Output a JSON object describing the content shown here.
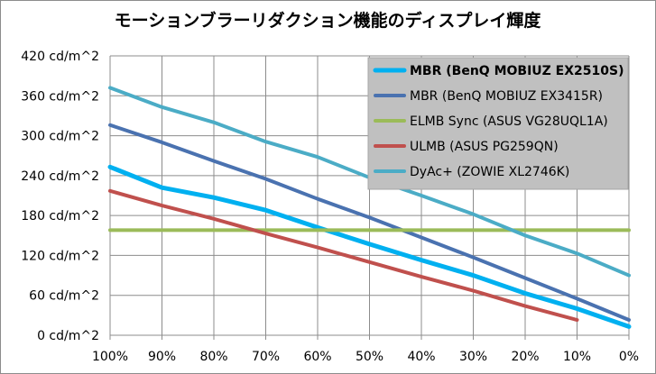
{
  "chart_data": {
    "type": "line",
    "title": "モーションブラーリダクション機能のディスプレイ輝度",
    "categories": [
      "100%",
      "90%",
      "80%",
      "70%",
      "60%",
      "50%",
      "40%",
      "30%",
      "20%",
      "10%",
      "0%"
    ],
    "y_tick_labels": [
      "0 cd/m^2",
      "60 cd/m^2",
      "120 cd/m^2",
      "180 cd/m^2",
      "240 cd/m^2",
      "300 cd/m^2",
      "360 cd/m^2",
      "420 cd/m^2"
    ],
    "ylim": [
      0,
      420
    ],
    "yticks": [
      0,
      60,
      120,
      180,
      240,
      300,
      360,
      420
    ],
    "grid": true,
    "legend_position": "top-right",
    "series": [
      {
        "name": "MBR (BenQ MOBIUZ EX2510S)",
        "color": "#00b0f0",
        "bold": true,
        "values": [
          253,
          222,
          207,
          188,
          162,
          137,
          113,
          90,
          63,
          40,
          13
        ]
      },
      {
        "name": "MBR (BenQ MOBIUZ EX3415R)",
        "color": "#4a72b0",
        "bold": false,
        "values": [
          316,
          290,
          262,
          235,
          205,
          177,
          147,
          117,
          86,
          55,
          23
        ]
      },
      {
        "name": "ELMB Sync (ASUS VG28UQL1A)",
        "color": "#9bbb59",
        "bold": false,
        "values": [
          158,
          158,
          158,
          158,
          158,
          158,
          158,
          158,
          158,
          158,
          158
        ]
      },
      {
        "name": "ULMB (ASUS PG259QN)",
        "color": "#c0504d",
        "bold": false,
        "values": [
          217,
          195,
          175,
          153,
          132,
          110,
          88,
          67,
          44,
          23,
          null
        ]
      },
      {
        "name": "DyAc+ (ZOWIE XL2746K)",
        "color": "#4bacc6",
        "bold": false,
        "values": [
          372,
          343,
          320,
          291,
          268,
          237,
          210,
          182,
          150,
          123,
          90
        ]
      }
    ]
  }
}
